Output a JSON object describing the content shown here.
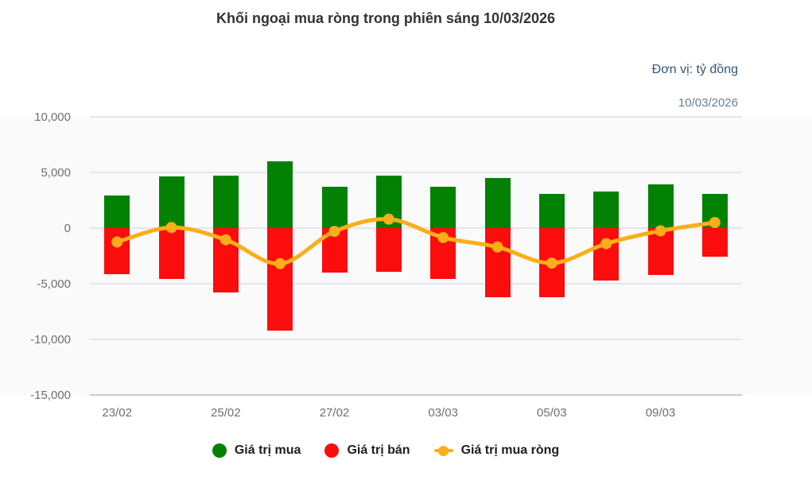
{
  "title": "Khối ngoại mua ròng trong phiên sáng 10/03/2026",
  "unit_label": "Đơn vị: tỷ đồng",
  "date_label": "10/03/2026",
  "colors": {
    "buy": "#038103",
    "sell": "#fb0d0d",
    "net": "#fbae17",
    "title_text": "#333333",
    "unit_text": "#36567c",
    "date_text": "#64809d",
    "axis_text": "#6d6f73",
    "legend_text": "#1c1e21",
    "grid_line": "#e3e6ea",
    "axis_line": "#c2cedf",
    "plot_bg": "#fafafa"
  },
  "chart_data": {
    "type": "combo-bar-line",
    "title": "Khối ngoại mua ròng trong phiên sáng 10/03/2026",
    "unit": "tỷ đồng",
    "xlabel": "",
    "ylabel": "",
    "ylim": [
      -15000,
      10000
    ],
    "ytick_values": [
      10000,
      5000,
      0,
      -5000,
      -10000,
      -15000
    ],
    "ytick_labels": [
      "10,000",
      "5,000",
      "0",
      "-5,000",
      "-10,000",
      "-15,000"
    ],
    "categories": [
      "23/02",
      "",
      "25/02",
      "",
      "27/02",
      "",
      "03/03",
      "",
      "05/03",
      "",
      "09/03",
      ""
    ],
    "grid": true,
    "legend_position": "bottom-center",
    "series": [
      {
        "name": "Giá trị mua",
        "type": "bar",
        "color": "#038103",
        "values": [
          2900,
          4650,
          4700,
          6000,
          3700,
          4750,
          3700,
          4500,
          3050,
          3300,
          3950,
          3100
        ]
      },
      {
        "name": "Giá trị bán",
        "type": "bar",
        "color": "#fb0d0d",
        "values": [
          -4150,
          -4600,
          -5750,
          -9200,
          -4000,
          -3950,
          -4550,
          -6200,
          -6200,
          -4700,
          -4200,
          -2600
        ]
      },
      {
        "name": "Giá trị mua ròng",
        "type": "line",
        "color": "#fbae17",
        "values": [
          -1250,
          50,
          -1050,
          -3200,
          -300,
          800,
          -850,
          -1700,
          -3150,
          -1400,
          -250,
          500
        ]
      }
    ]
  }
}
